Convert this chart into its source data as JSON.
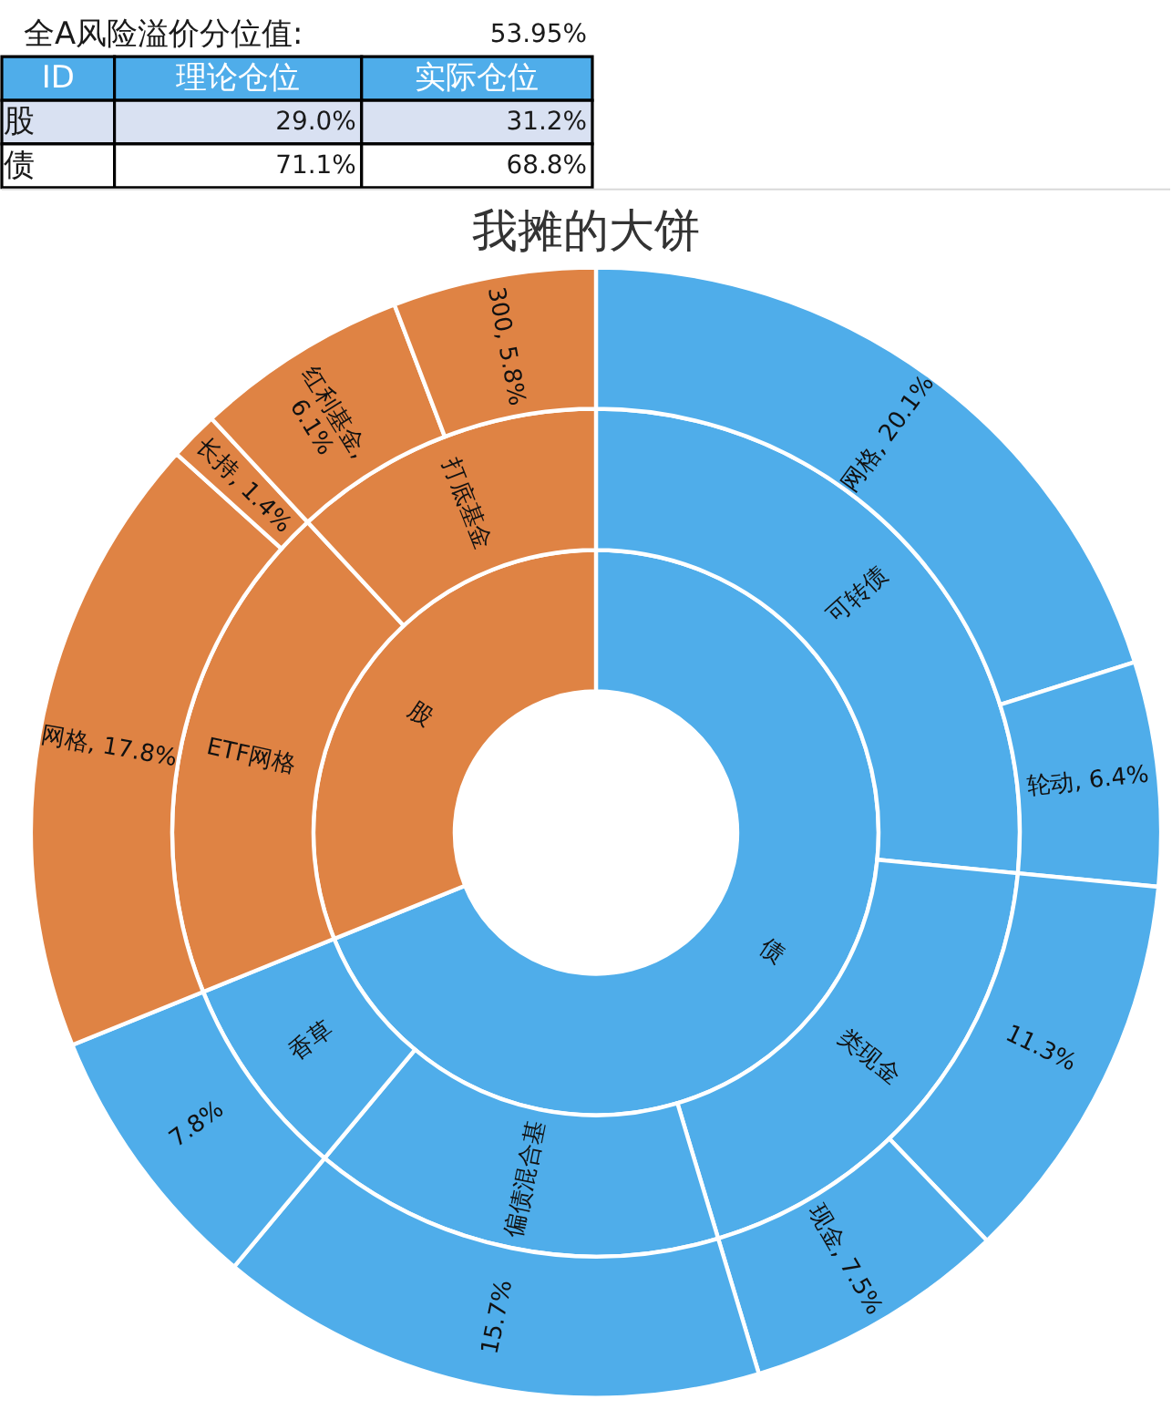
{
  "chart_data": [
    {
      "type": "other",
      "annotations": [
        "全A风险溢价分位值:",
        "53.95%",
        "ID",
        "理论仓位",
        "实际仓位",
        "股",
        "29.0%",
        "31.2%",
        "债",
        "71.1%",
        "68.8%"
      ]
    },
    {
      "type": "donut",
      "title": "我摊的大饼",
      "series": [
        {
          "values": [
            68.8,
            31.1
          ],
          "value_labels": [
            "债",
            "股"
          ],
          "colors": [
            "#4fadea",
            "#df8344"
          ]
        },
        {
          "values": [
            26.5,
            18.8,
            15.7,
            7.8,
            19.2,
            11.9
          ],
          "value_labels": [
            "可转债",
            "类现金",
            "偏债混合基",
            "香草",
            "ETF网格",
            "打底基金"
          ],
          "colors": [
            "#4fadea",
            "#4fadea",
            "#4fadea",
            "#4fadea",
            "#df8344",
            "#df8344"
          ]
        },
        {
          "values": [
            20.1,
            6.4,
            11.3,
            7.5,
            15.7,
            7.8,
            17.8,
            1.4,
            6.1,
            5.8
          ],
          "value_labels": [
            "网格, 20.1%",
            "轮动, 6.4%",
            "11.3%",
            "现金, 7.5%",
            "15.7%",
            "7.8%",
            "网格, 17.8%",
            "长持, 1.4%",
            "红利基金, 6.1%",
            "300, 5.8%"
          ],
          "colors": [
            "#4fadea",
            "#4fadea",
            "#4fadea",
            "#4fadea",
            "#4fadea",
            "#4fadea",
            "#df8344",
            "#df8344",
            "#df8344",
            "#df8344"
          ]
        }
      ]
    }
  ]
}
